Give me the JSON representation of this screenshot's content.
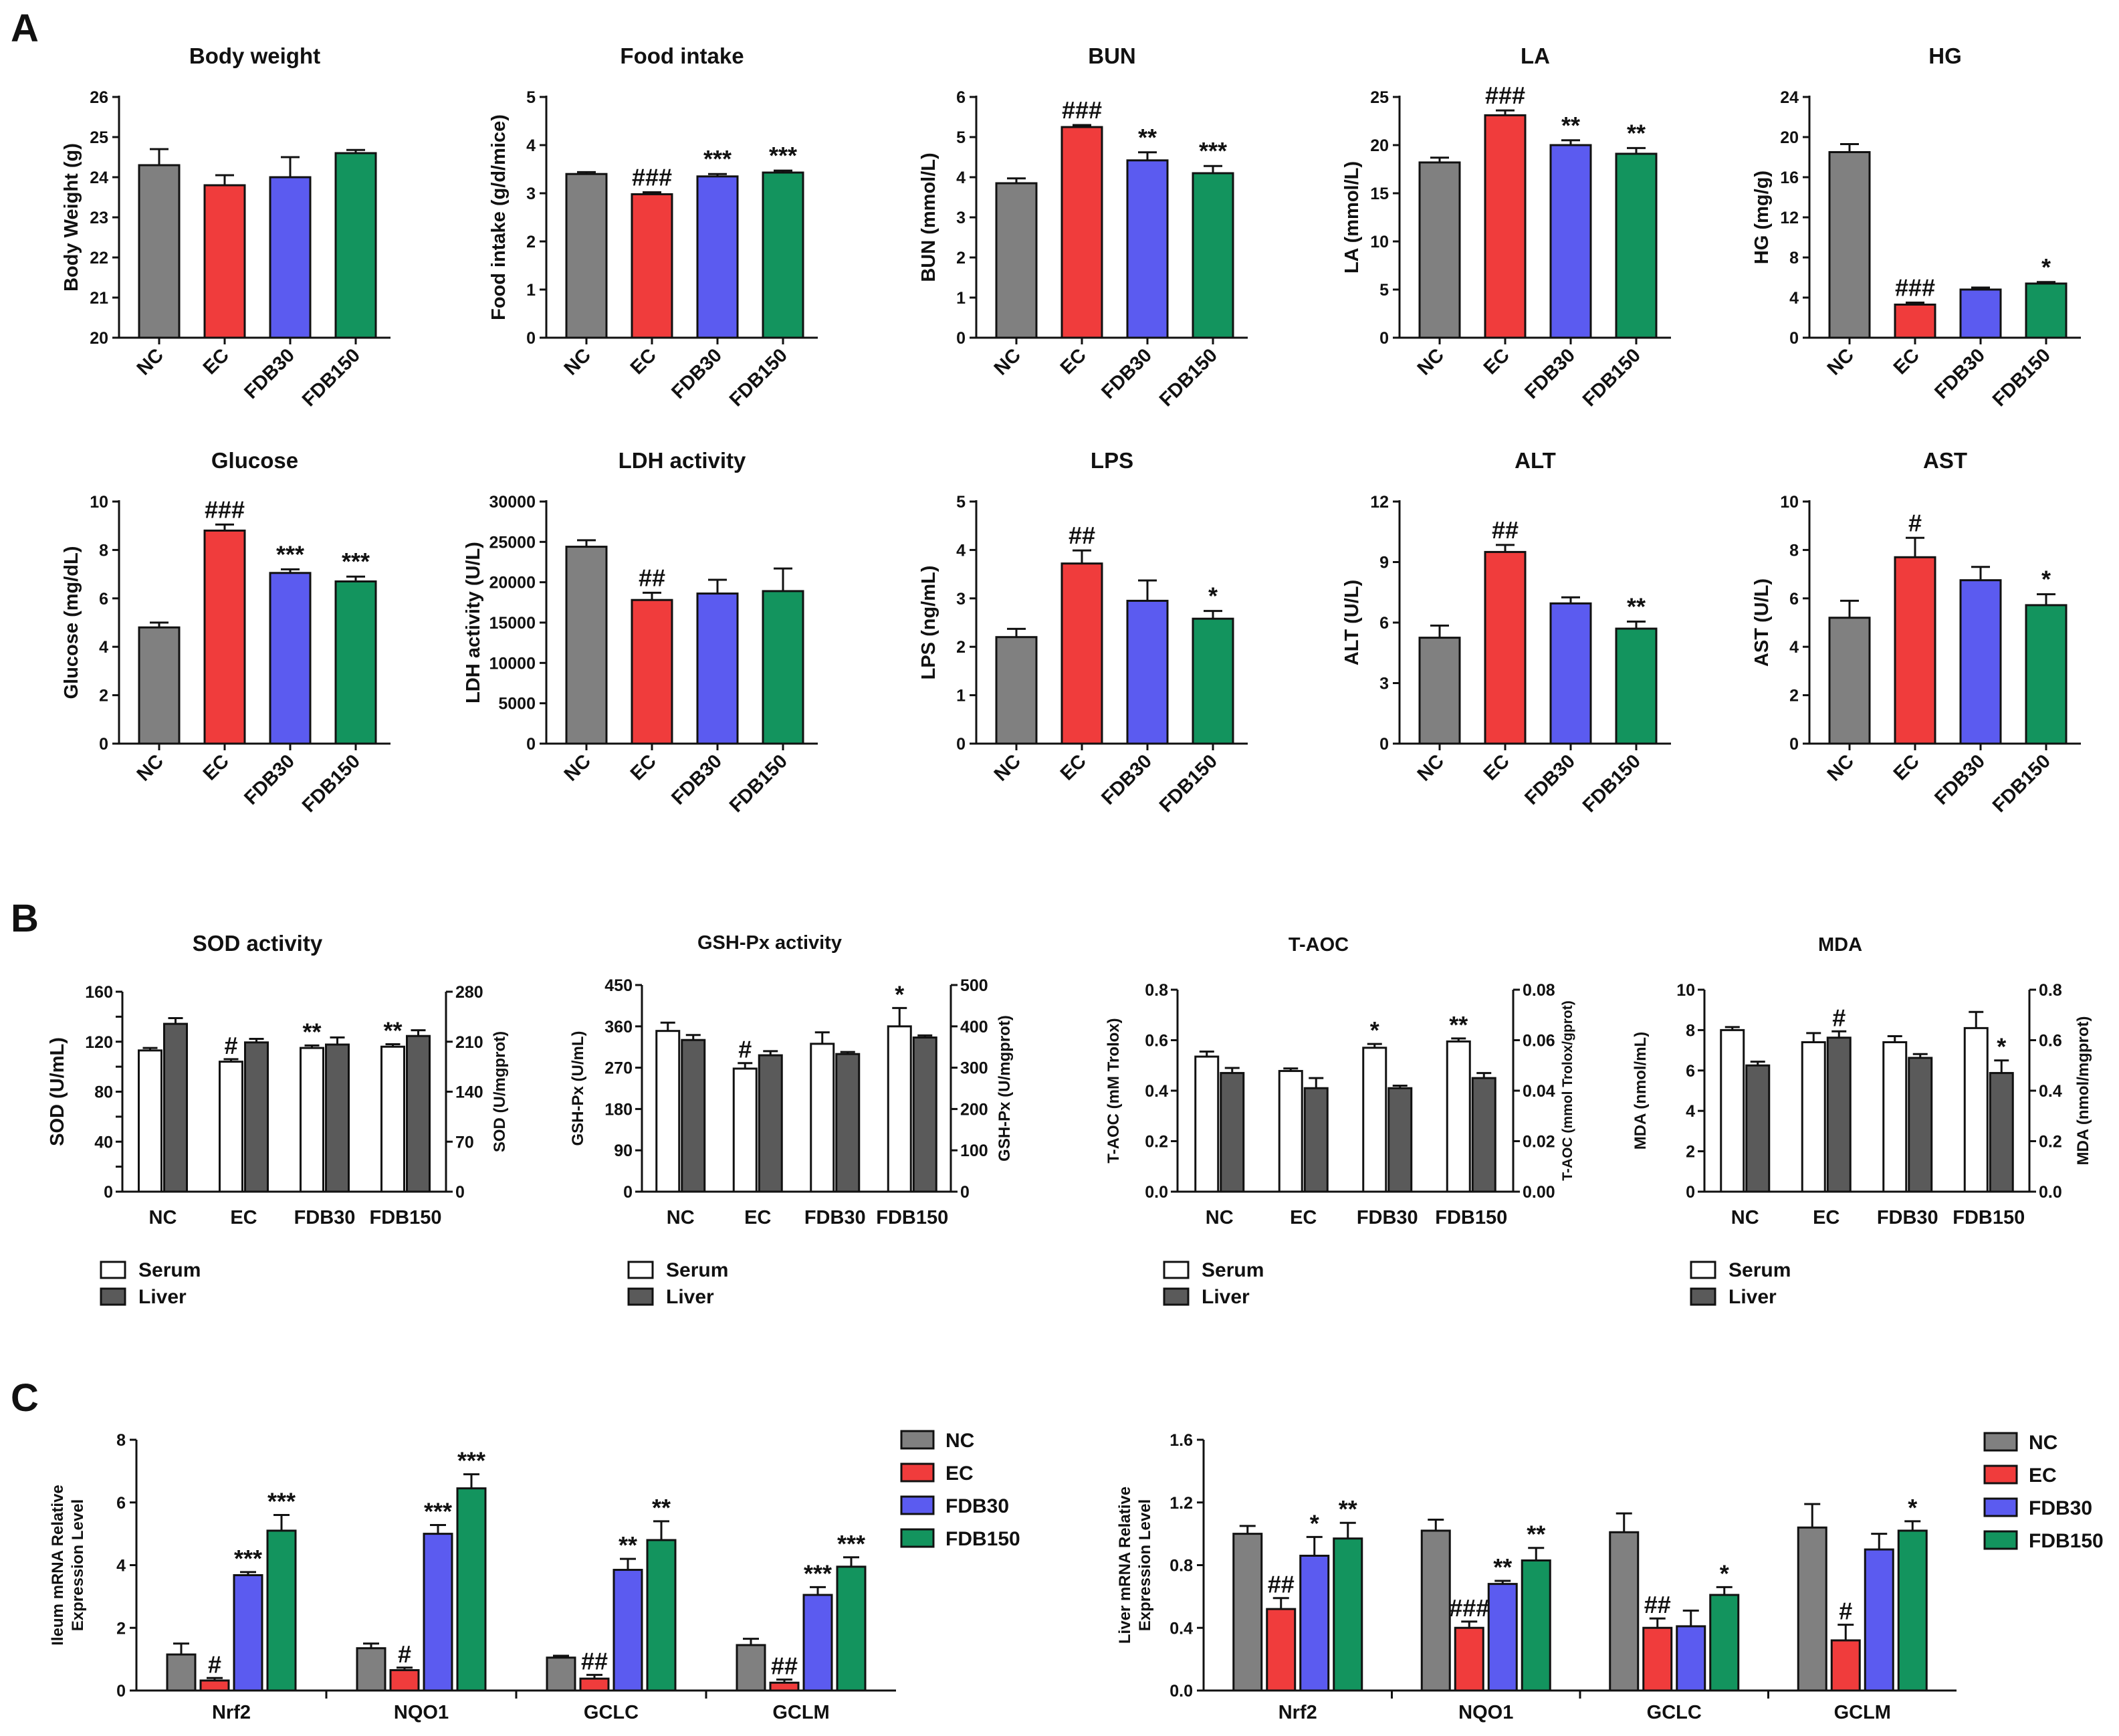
{
  "panel_labels": [
    "A",
    "B",
    "C"
  ],
  "colors": {
    "NC": "#808080",
    "EC": "#f03c3c",
    "FDB30": "#5b5bf0",
    "FDB150": "#13945e",
    "Serum": "#ffffff",
    "Liver": "#5a5a5a"
  },
  "chart_data": [
    {
      "id": "A1",
      "type": "bar",
      "title": "Body weight",
      "ylabel": "Body Weight (g)",
      "ylim": [
        20,
        26
      ],
      "yticks": [
        "20",
        "21",
        "22",
        "23",
        "24",
        "25",
        "26"
      ],
      "categories": [
        "NC",
        "EC",
        "FDB30",
        "FDB150"
      ],
      "values": [
        24.3,
        23.8,
        24.0,
        24.6
      ],
      "errors": [
        0.4,
        0.25,
        0.5,
        0.08
      ],
      "annotations": [
        "",
        "",
        "",
        ""
      ]
    },
    {
      "id": "A2",
      "type": "bar",
      "title": "Food intake",
      "ylabel": "Food intake (g/d/mice)",
      "ylim": [
        0,
        5
      ],
      "yticks": [
        "0",
        "1",
        "2",
        "3",
        "4",
        "5"
      ],
      "categories": [
        "NC",
        "EC",
        "FDB30",
        "FDB150"
      ],
      "values": [
        3.4,
        2.98,
        3.35,
        3.43
      ],
      "errors": [
        0.04,
        0.04,
        0.05,
        0.04
      ],
      "annotations": [
        "",
        "###",
        "***",
        "***"
      ]
    },
    {
      "id": "A3",
      "type": "bar",
      "title": "BUN",
      "ylabel": "BUN (mmol/L)",
      "ylim": [
        0,
        6
      ],
      "yticks": [
        "0",
        "1",
        "2",
        "3",
        "4",
        "5",
        "6"
      ],
      "categories": [
        "NC",
        "EC",
        "FDB30",
        "FDB150"
      ],
      "values": [
        3.85,
        5.25,
        4.42,
        4.1
      ],
      "errors": [
        0.12,
        0.05,
        0.2,
        0.18
      ],
      "annotations": [
        "",
        "###",
        "**",
        "***"
      ]
    },
    {
      "id": "A4",
      "type": "bar",
      "title": "LA",
      "ylabel": "LA (mmol/L)",
      "ylim": [
        0,
        25
      ],
      "yticks": [
        "0",
        "5",
        "10",
        "15",
        "20",
        "25"
      ],
      "categories": [
        "NC",
        "EC",
        "FDB30",
        "FDB150"
      ],
      "values": [
        18.2,
        23.1,
        20.0,
        19.1
      ],
      "errors": [
        0.5,
        0.5,
        0.5,
        0.6
      ],
      "annotations": [
        "",
        "###",
        "**",
        "**"
      ]
    },
    {
      "id": "A5",
      "type": "bar",
      "title": "HG",
      "ylabel": "HG (mg/g)",
      "ylim": [
        0,
        24
      ],
      "yticks": [
        "0",
        "4",
        "8",
        "12",
        "16",
        "20",
        "24"
      ],
      "categories": [
        "NC",
        "EC",
        "FDB30",
        "FDB150"
      ],
      "values": [
        18.5,
        3.3,
        4.8,
        5.4
      ],
      "errors": [
        0.8,
        0.2,
        0.2,
        0.15
      ],
      "annotations": [
        "",
        "###",
        "",
        "*"
      ]
    },
    {
      "id": "A6",
      "type": "bar",
      "title": "Glucose",
      "ylabel": "Glucose (mg/dL)",
      "ylim": [
        0,
        10
      ],
      "yticks": [
        "0",
        "2",
        "4",
        "6",
        "8",
        "10"
      ],
      "categories": [
        "NC",
        "EC",
        "FDB30",
        "FDB150"
      ],
      "values": [
        4.8,
        8.8,
        7.05,
        6.7
      ],
      "errors": [
        0.2,
        0.25,
        0.15,
        0.2
      ],
      "annotations": [
        "",
        "###",
        "***",
        "***"
      ]
    },
    {
      "id": "A7",
      "type": "bar",
      "title": "LDH activity",
      "ylabel": "LDH activity (U/L)",
      "ylim": [
        0,
        30000
      ],
      "yticks": [
        "0",
        "5000",
        "10000",
        "15000",
        "20000",
        "25000",
        "30000"
      ],
      "categories": [
        "NC",
        "EC",
        "FDB30",
        "FDB150"
      ],
      "values": [
        24400,
        17800,
        18600,
        18900
      ],
      "errors": [
        800,
        900,
        1700,
        2800
      ],
      "annotations": [
        "",
        "##",
        "",
        ""
      ]
    },
    {
      "id": "A8",
      "type": "bar",
      "title": "LPS",
      "ylabel": "LPS (ng/mL)",
      "ylim": [
        0,
        5
      ],
      "yticks": [
        "0",
        "1",
        "2",
        "3",
        "4",
        "5"
      ],
      "categories": [
        "NC",
        "EC",
        "FDB30",
        "FDB150"
      ],
      "values": [
        2.2,
        3.72,
        2.95,
        2.58
      ],
      "errors": [
        0.17,
        0.27,
        0.42,
        0.16
      ],
      "annotations": [
        "",
        "##",
        "",
        "*"
      ]
    },
    {
      "id": "A9",
      "type": "bar",
      "title": "ALT",
      "ylabel": "ALT (U/L)",
      "ylim": [
        0,
        12
      ],
      "yticks": [
        "0",
        "3",
        "6",
        "9",
        "12"
      ],
      "categories": [
        "NC",
        "EC",
        "FDB30",
        "FDB150"
      ],
      "values": [
        5.25,
        9.5,
        6.95,
        5.7
      ],
      "errors": [
        0.6,
        0.35,
        0.3,
        0.35
      ],
      "annotations": [
        "",
        "##",
        "",
        "**"
      ]
    },
    {
      "id": "A10",
      "type": "bar",
      "title": "AST",
      "ylabel": "AST (U/L)",
      "ylim": [
        0,
        10
      ],
      "yticks": [
        "0",
        "2",
        "4",
        "6",
        "8",
        "10"
      ],
      "categories": [
        "NC",
        "EC",
        "FDB30",
        "FDB150"
      ],
      "values": [
        5.2,
        7.7,
        6.75,
        5.72
      ],
      "errors": [
        0.7,
        0.8,
        0.55,
        0.45
      ],
      "annotations": [
        "",
        "#",
        "",
        "*"
      ]
    },
    {
      "id": "B1",
      "type": "bar",
      "title": "SOD activity",
      "ylabel": "SOD (U/mL)",
      "y2label": "SOD (U/mgprot)",
      "ylim": [
        0,
        160
      ],
      "y2lim": [
        0,
        280
      ],
      "yticks": [
        "0",
        "20",
        "40",
        "60",
        "80",
        "100",
        "120",
        "140",
        "160"
      ],
      "yticks_labeled": [
        "0",
        "40",
        "80",
        "120",
        "160"
      ],
      "y2ticks": [
        "0",
        "70",
        "140",
        "210",
        "280"
      ],
      "categories": [
        "NC",
        "EC",
        "FDB30",
        "FDB150"
      ],
      "series": [
        {
          "name": "Serum",
          "axis": "left",
          "values": [
            113,
            104,
            115,
            116
          ],
          "errors": [
            2,
            2,
            2,
            2
          ],
          "annotations": [
            "",
            "#",
            "**",
            "**"
          ]
        },
        {
          "name": "Liver",
          "axis": "right",
          "values": [
            235,
            209,
            206,
            218
          ],
          "errors": [
            8,
            5,
            10,
            8
          ],
          "annotations": [
            "",
            "",
            "",
            ""
          ]
        }
      ]
    },
    {
      "id": "B2",
      "type": "bar",
      "title": "GSH-Px activity",
      "ylabel": "GSH-Px  (U/mL)",
      "y2label": "GSH-Px (U/mgprot)",
      "ylim": [
        0,
        450
      ],
      "y2lim": [
        0,
        500
      ],
      "yticks": [
        "0",
        "90",
        "180",
        "270",
        "360",
        "450"
      ],
      "y2ticks": [
        "0",
        "100",
        "200",
        "300",
        "400",
        "500"
      ],
      "categories": [
        "NC",
        "EC",
        "FDB30",
        "FDB150"
      ],
      "series": [
        {
          "name": "Serum",
          "axis": "left",
          "values": [
            350,
            268,
            322,
            360
          ],
          "errors": [
            18,
            12,
            25,
            40
          ],
          "annotations": [
            "",
            "#",
            "",
            "*"
          ]
        },
        {
          "name": "Liver",
          "axis": "right",
          "values": [
            367,
            330,
            333,
            373
          ],
          "errors": [
            12,
            10,
            5,
            5
          ],
          "annotations": [
            "",
            "",
            "",
            ""
          ]
        }
      ]
    },
    {
      "id": "B3",
      "type": "bar",
      "title": "T-AOC",
      "ylabel": "T-AOC (mM Trolox)",
      "y2label": "T-AOC (mmol Trolox/gprot)",
      "ylim": [
        0,
        0.8
      ],
      "y2lim": [
        0,
        0.08
      ],
      "yticks": [
        "0.0",
        "0.2",
        "0.4",
        "0.6",
        "0.8"
      ],
      "y2ticks": [
        "0.00",
        "0.02",
        "0.04",
        "0.06",
        "0.08"
      ],
      "categories": [
        "NC",
        "EC",
        "FDB30",
        "FDB150"
      ],
      "series": [
        {
          "name": "Serum",
          "axis": "left",
          "values": [
            0.535,
            0.478,
            0.57,
            0.595
          ],
          "errors": [
            0.02,
            0.01,
            0.015,
            0.012
          ],
          "annotations": [
            "",
            "",
            "*",
            "**"
          ]
        },
        {
          "name": "Liver",
          "axis": "right",
          "values": [
            0.047,
            0.041,
            0.041,
            0.045
          ],
          "errors": [
            0.002,
            0.004,
            0.001,
            0.002
          ],
          "annotations": [
            "",
            "",
            "",
            ""
          ]
        }
      ]
    },
    {
      "id": "B4",
      "type": "bar",
      "title": "MDA",
      "ylabel": "MDA (nmol/mL)",
      "y2label": "MDA (nmol/mgprot)",
      "ylim": [
        0,
        10
      ],
      "y2lim": [
        0,
        0.8
      ],
      "yticks": [
        "0",
        "2",
        "4",
        "6",
        "8",
        "10"
      ],
      "y2ticks": [
        "0.0",
        "0.2",
        "0.4",
        "0.6",
        "0.8"
      ],
      "categories": [
        "NC",
        "EC",
        "FDB30",
        "FDB150"
      ],
      "series": [
        {
          "name": "Serum",
          "axis": "left",
          "values": [
            8.0,
            7.4,
            7.4,
            8.1
          ],
          "errors": [
            0.15,
            0.45,
            0.3,
            0.8
          ],
          "annotations": [
            "",
            "",
            "",
            ""
          ]
        },
        {
          "name": "Liver",
          "axis": "right",
          "values": [
            0.5,
            0.61,
            0.53,
            0.47
          ],
          "errors": [
            0.015,
            0.025,
            0.015,
            0.05
          ],
          "annotations": [
            "",
            "#",
            "",
            "*"
          ]
        }
      ]
    },
    {
      "id": "C1",
      "type": "bar",
      "ylabel": "Ileum mRNA Relative\nExpression Level",
      "ylim": [
        0,
        8
      ],
      "yticks": [
        "0",
        "2",
        "4",
        "6",
        "8"
      ],
      "categories": [
        "Nrf2",
        "NQO1",
        "GCLC",
        "GCLM"
      ],
      "series": [
        {
          "name": "NC",
          "values": [
            1.15,
            1.35,
            1.05,
            1.45
          ],
          "errors": [
            0.35,
            0.15,
            0.06,
            0.2
          ],
          "annotations": [
            "",
            "",
            "",
            ""
          ]
        },
        {
          "name": "EC",
          "values": [
            0.32,
            0.65,
            0.38,
            0.25
          ],
          "errors": [
            0.08,
            0.08,
            0.12,
            0.1
          ],
          "annotations": [
            "#",
            "#",
            "##",
            "##"
          ]
        },
        {
          "name": "FDB30",
          "values": [
            3.68,
            5.0,
            3.85,
            3.05
          ],
          "errors": [
            0.1,
            0.28,
            0.35,
            0.25
          ],
          "annotations": [
            "***",
            "***",
            "**",
            "***"
          ]
        },
        {
          "name": "FDB150",
          "values": [
            5.1,
            6.45,
            4.8,
            3.95
          ],
          "errors": [
            0.5,
            0.45,
            0.6,
            0.3
          ],
          "annotations": [
            "***",
            "***",
            "**",
            "***"
          ]
        }
      ],
      "legend": [
        "NC",
        "EC",
        "FDB30",
        "FDB150"
      ]
    },
    {
      "id": "C2",
      "type": "bar",
      "ylabel": "Liver mRNA Relative\nExpression Level",
      "ylim": [
        0,
        1.6
      ],
      "yticks": [
        "0.0",
        "0.4",
        "0.8",
        "1.2",
        "1.6"
      ],
      "categories": [
        "Nrf2",
        "NQO1",
        "GCLC",
        "GCLM"
      ],
      "series": [
        {
          "name": "NC",
          "values": [
            1.0,
            1.02,
            1.01,
            1.04
          ],
          "errors": [
            0.05,
            0.07,
            0.12,
            0.15
          ],
          "annotations": [
            "",
            "",
            "",
            ""
          ]
        },
        {
          "name": "EC",
          "values": [
            0.52,
            0.4,
            0.4,
            0.32
          ],
          "errors": [
            0.07,
            0.04,
            0.06,
            0.1
          ],
          "annotations": [
            "##",
            "###",
            "##",
            "#"
          ]
        },
        {
          "name": "FDB30",
          "values": [
            0.86,
            0.68,
            0.41,
            0.9
          ],
          "errors": [
            0.12,
            0.02,
            0.1,
            0.1
          ],
          "annotations": [
            "*",
            "**",
            "",
            ""
          ]
        },
        {
          "name": "FDB150",
          "values": [
            0.97,
            0.83,
            0.61,
            1.02
          ],
          "errors": [
            0.1,
            0.08,
            0.05,
            0.06
          ],
          "annotations": [
            "**",
            "**",
            "*",
            "*"
          ]
        }
      ],
      "legend": [
        "NC",
        "EC",
        "FDB30",
        "FDB150"
      ]
    }
  ]
}
